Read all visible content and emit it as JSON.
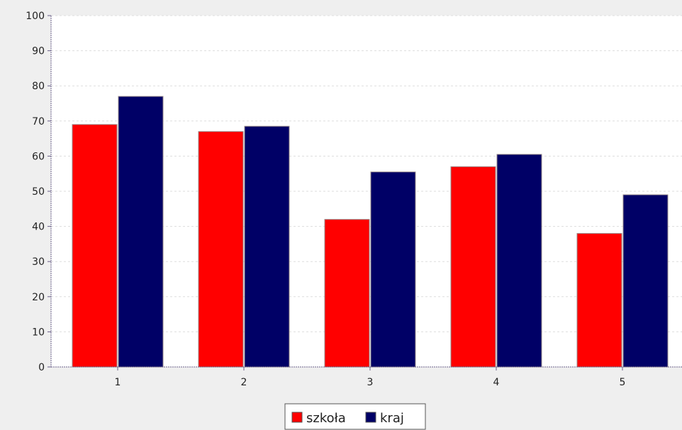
{
  "chart_data": {
    "type": "bar",
    "categories": [
      "1",
      "2",
      "3",
      "4",
      "5"
    ],
    "series": [
      {
        "name": "szkoła",
        "values": [
          69,
          67,
          42,
          57,
          38
        ],
        "color": "#ff0000"
      },
      {
        "name": "kraj",
        "values": [
          77,
          68.5,
          55.5,
          60.5,
          49
        ],
        "color": "#000066"
      }
    ],
    "ylim": [
      0,
      100
    ],
    "yticks": [
      0,
      10,
      20,
      30,
      40,
      50,
      60,
      70,
      80,
      90,
      100
    ],
    "title": "",
    "xlabel": "",
    "ylabel": "",
    "grid": true,
    "legend_position": "bottom-center"
  },
  "colors": {
    "background": "#efefef",
    "plot_background": "#ffffff",
    "gridline": "#dddddd",
    "axis": "#6a5f8a"
  }
}
